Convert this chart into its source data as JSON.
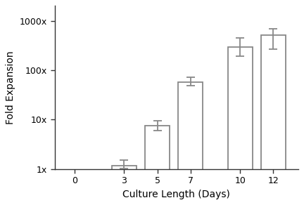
{
  "categories": [
    0,
    3,
    5,
    7,
    10,
    12
  ],
  "values": [
    null,
    1.15,
    7.5,
    58.0,
    290.0,
    520.0
  ],
  "error_low": [
    null,
    0.12,
    1.5,
    10.0,
    100.0,
    250.0
  ],
  "error_high": [
    null,
    0.35,
    2.0,
    15.0,
    160.0,
    170.0
  ],
  "bar_color": "#ffffff",
  "bar_edge_color": "#888888",
  "error_color": "#888888",
  "xlabel": "Culture Length (Days)",
  "ylabel": "Fold Expansion",
  "ylim_min": 1,
  "ylim_max": 1000,
  "ytick_labels": [
    "1x",
    "10x",
    "100x",
    "1000x"
  ],
  "ytick_values": [
    1,
    10,
    100,
    1000
  ],
  "bar_width": 1.5,
  "background_color": "#ffffff",
  "figsize": [
    4.32,
    2.92
  ],
  "dpi": 100
}
